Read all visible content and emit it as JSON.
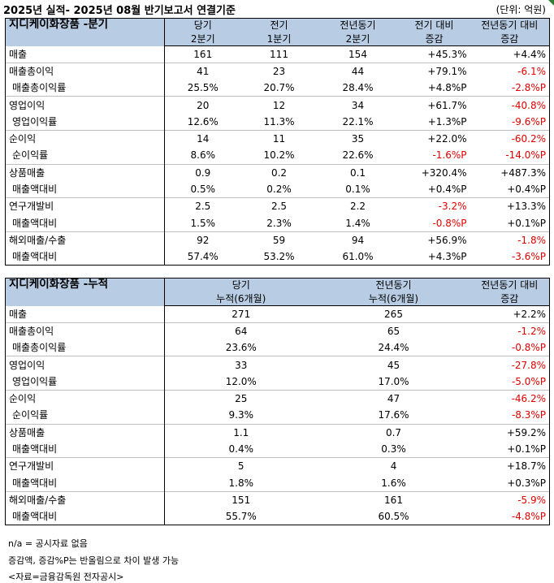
{
  "title": "2025년 실적- 2025년 08월 반기보고서 연결기준",
  "unit": "(단위: 억원)",
  "quarterly": {
    "header": {
      "name": "지디케이화장품 -분기",
      "cols": [
        [
          "당기",
          "2분기"
        ],
        [
          "전기",
          "1분기"
        ],
        [
          "전년동기",
          "2분기"
        ],
        [
          "전기 대비",
          "증감"
        ],
        [
          "전년동기 대비",
          "증감"
        ]
      ]
    },
    "groups": [
      {
        "main": {
          "label": "매출",
          "vals": [
            "161",
            "111",
            "154",
            "+45.3%",
            "+4.4%"
          ],
          "red": [
            false,
            false
          ]
        }
      },
      {
        "main": {
          "label": "매출총이익",
          "vals": [
            "41",
            "23",
            "44",
            "+79.1%",
            "-6.1%"
          ],
          "red": [
            false,
            true
          ]
        },
        "sub": {
          "label": "매출총이익률",
          "vals": [
            "25.5%",
            "20.7%",
            "28.4%",
            "+4.8%P",
            "-2.8%P"
          ],
          "red": [
            false,
            true
          ]
        }
      },
      {
        "main": {
          "label": "영업이익",
          "vals": [
            "20",
            "12",
            "34",
            "+61.7%",
            "-40.8%"
          ],
          "red": [
            false,
            true
          ]
        },
        "sub": {
          "label": "영업이익률",
          "vals": [
            "12.6%",
            "11.3%",
            "22.1%",
            "+1.3%P",
            "-9.6%P"
          ],
          "red": [
            false,
            true
          ]
        }
      },
      {
        "main": {
          "label": "순이익",
          "vals": [
            "14",
            "11",
            "35",
            "+22.0%",
            "-60.2%"
          ],
          "red": [
            false,
            true
          ]
        },
        "sub": {
          "label": "순이익률",
          "vals": [
            "8.6%",
            "10.2%",
            "22.6%",
            "-1.6%P",
            "-14.0%P"
          ],
          "red": [
            true,
            true
          ]
        }
      },
      {
        "main": {
          "label": "상품매출",
          "vals": [
            "0.9",
            "0.2",
            "0.1",
            "+320.4%",
            "+487.3%"
          ],
          "red": [
            false,
            false
          ]
        },
        "sub": {
          "label": "매출액대비",
          "vals": [
            "0.5%",
            "0.2%",
            "0.1%",
            "+0.4%P",
            "+0.4%P"
          ],
          "red": [
            false,
            false
          ]
        }
      },
      {
        "main": {
          "label": "연구개발비",
          "vals": [
            "2.5",
            "2.5",
            "2.2",
            "-3.2%",
            "+13.3%"
          ],
          "red": [
            true,
            false
          ]
        },
        "sub": {
          "label": "매출액대비",
          "vals": [
            "1.5%",
            "2.3%",
            "1.4%",
            "-0.8%P",
            "+0.1%P"
          ],
          "red": [
            true,
            false
          ]
        }
      },
      {
        "main": {
          "label": "해외매출/수출",
          "vals": [
            "92",
            "59",
            "94",
            "+56.9%",
            "-1.8%"
          ],
          "red": [
            false,
            true
          ]
        },
        "sub": {
          "label": "매출액대비",
          "vals": [
            "57.4%",
            "53.2%",
            "61.0%",
            "+4.3%P",
            "-3.6%P"
          ],
          "red": [
            false,
            true
          ]
        }
      }
    ]
  },
  "cumulative": {
    "header": {
      "name": "지디케이화장품 -누적",
      "cols": [
        [
          "당기",
          "누적(6개월)"
        ],
        [
          "전년동기",
          "누적(6개월)"
        ],
        [
          "전년동기 대비",
          "증감"
        ]
      ]
    },
    "groups": [
      {
        "main": {
          "label": "매출",
          "vals": [
            "271",
            "265",
            "+2.2%"
          ],
          "red": [
            false
          ]
        }
      },
      {
        "main": {
          "label": "매출총이익",
          "vals": [
            "64",
            "65",
            "-1.2%"
          ],
          "red": [
            true
          ]
        },
        "sub": {
          "label": "매출총이익률",
          "vals": [
            "23.6%",
            "24.4%",
            "-0.8%P"
          ],
          "red": [
            true
          ]
        }
      },
      {
        "main": {
          "label": "영업이익",
          "vals": [
            "33",
            "45",
            "-27.8%"
          ],
          "red": [
            true
          ]
        },
        "sub": {
          "label": "영업이익률",
          "vals": [
            "12.0%",
            "17.0%",
            "-5.0%P"
          ],
          "red": [
            true
          ]
        }
      },
      {
        "main": {
          "label": "순이익",
          "vals": [
            "25",
            "47",
            "-46.2%"
          ],
          "red": [
            true
          ]
        },
        "sub": {
          "label": "순이익률",
          "vals": [
            "9.3%",
            "17.6%",
            "-8.3%P"
          ],
          "red": [
            true
          ]
        }
      },
      {
        "main": {
          "label": "상품매출",
          "vals": [
            "1.1",
            "0.7",
            "+59.2%"
          ],
          "red": [
            false
          ]
        },
        "sub": {
          "label": "매출액대비",
          "vals": [
            "0.4%",
            "0.3%",
            "+0.1%P"
          ],
          "red": [
            false
          ]
        }
      },
      {
        "main": {
          "label": "연구개발비",
          "vals": [
            "5",
            "4",
            "+18.7%"
          ],
          "red": [
            false
          ]
        },
        "sub": {
          "label": "매출액대비",
          "vals": [
            "1.8%",
            "1.6%",
            "+0.3%P"
          ],
          "red": [
            false
          ]
        }
      },
      {
        "main": {
          "label": "해외매출/수출",
          "vals": [
            "151",
            "161",
            "-5.9%"
          ],
          "red": [
            true
          ]
        },
        "sub": {
          "label": "매출액대비",
          "vals": [
            "55.7%",
            "60.5%",
            "-4.8%P"
          ],
          "red": [
            true
          ]
        }
      }
    ]
  },
  "notes": [
    "n/a = 공시자료 없음",
    "증감액, 증감%P는 반올림으로 차이 발생 가능",
    "<자료=금융감독원 전자공시>"
  ],
  "colors": {
    "header_bg": "#b8cce4",
    "negative": "#e00000",
    "corner": "#2e7d32"
  }
}
